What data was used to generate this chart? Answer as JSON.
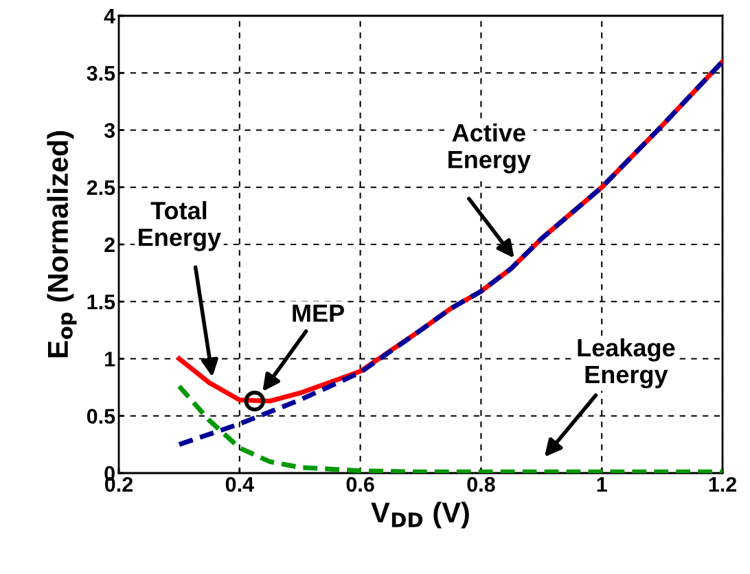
{
  "chart_data": {
    "type": "line",
    "xlabel": "V$_{DD}$ (V)",
    "ylabel": "E$_{op}$ (Normalized)",
    "xlim": [
      0.2,
      1.2
    ],
    "xticks": [
      0.2,
      0.4,
      0.6,
      0.8,
      1,
      1.2
    ],
    "ylim": [
      0,
      4
    ],
    "yticks": [
      0,
      0.5,
      1,
      1.5,
      2,
      2.5,
      3,
      3.5,
      4
    ],
    "grid": true,
    "legend": false,
    "marker": "none",
    "series": [
      {
        "color": "#ff0000",
        "line_style": "solid",
        "x": [
          0.3,
          0.35,
          0.4,
          0.45,
          0.5,
          0.6,
          0.7,
          0.75,
          0.8,
          0.85,
          0.9,
          1.0,
          1.1,
          1.2
        ],
        "values": [
          1.0,
          0.79,
          0.64,
          0.63,
          0.7,
          0.89,
          1.25,
          1.44,
          1.59,
          1.79,
          2.05,
          2.5,
          3.04,
          3.6
        ]
      },
      {
        "color": "#000099",
        "line_style": "dashed",
        "x": [
          0.3,
          0.4,
          0.5,
          0.6,
          0.7,
          0.75,
          0.8,
          0.85,
          0.9,
          1.0,
          1.1,
          1.2
        ],
        "values": [
          0.25,
          0.43,
          0.64,
          0.88,
          1.25,
          1.44,
          1.59,
          1.79,
          2.05,
          2.5,
          3.04,
          3.6
        ]
      },
      {
        "color": "#009900",
        "line_style": "dashed",
        "x": [
          0.3,
          0.35,
          0.4,
          0.45,
          0.5,
          0.6,
          0.7,
          0.8,
          0.9,
          1.0,
          1.1,
          1.2
        ],
        "values": [
          0.76,
          0.46,
          0.22,
          0.1,
          0.05,
          0.02,
          0.01,
          0.01,
          0.01,
          0.01,
          0.01,
          0.01
        ]
      },
      {
        "type": "scatter",
        "marker": "circle",
        "color": "#000000",
        "x": [
          0.425
        ],
        "values": [
          0.63
        ]
      }
    ],
    "annotations": [
      "Total\nEnergy",
      "MEP",
      "Active\nEnergy",
      "Leakage\nEnergy"
    ]
  }
}
